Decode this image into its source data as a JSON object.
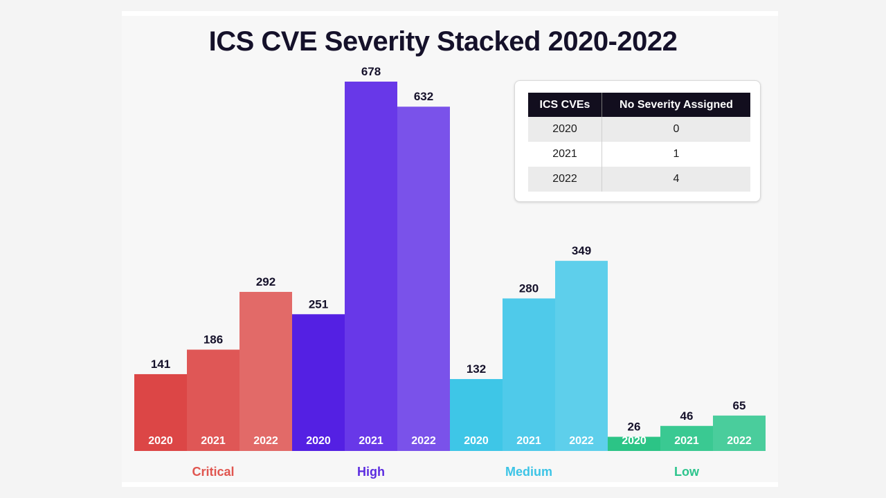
{
  "chart_data": {
    "type": "bar",
    "title": "ICS CVE Severity Stacked 2020-2022",
    "groups": [
      {
        "name": "Critical",
        "label_color": "#e0554f",
        "bars": [
          {
            "year": "2020",
            "value": 141,
            "color": "#dc4646"
          },
          {
            "year": "2021",
            "value": 186,
            "color": "#df5756"
          },
          {
            "year": "2022",
            "value": 292,
            "color": "#e26a68"
          }
        ]
      },
      {
        "name": "High",
        "label_color": "#5b2be0",
        "bars": [
          {
            "year": "2020",
            "value": 251,
            "color": "#5420e3"
          },
          {
            "year": "2021",
            "value": 678,
            "color": "#6838e8"
          },
          {
            "year": "2022",
            "value": 632,
            "color": "#7a52ea"
          }
        ]
      },
      {
        "name": "Medium",
        "label_color": "#3cc4e6",
        "bars": [
          {
            "year": "2020",
            "value": 132,
            "color": "#3ec6e7"
          },
          {
            "year": "2021",
            "value": 280,
            "color": "#4fcaea"
          },
          {
            "year": "2022",
            "value": 349,
            "color": "#5ecfeb"
          }
        ]
      },
      {
        "name": "Low",
        "label_color": "#2cc48c",
        "bars": [
          {
            "year": "2020",
            "value": 26,
            "color": "#2cc486"
          },
          {
            "year": "2021",
            "value": 46,
            "color": "#3ac992"
          },
          {
            "year": "2022",
            "value": 65,
            "color": "#4acd9c"
          }
        ]
      }
    ],
    "value_label_color": "#15112a",
    "year_label_color": "#ffffff"
  },
  "table": {
    "headers": [
      "ICS CVEs",
      "No Severity Assigned"
    ],
    "rows": [
      [
        "2020",
        "0"
      ],
      [
        "2021",
        "1"
      ],
      [
        "2022",
        "4"
      ]
    ]
  }
}
